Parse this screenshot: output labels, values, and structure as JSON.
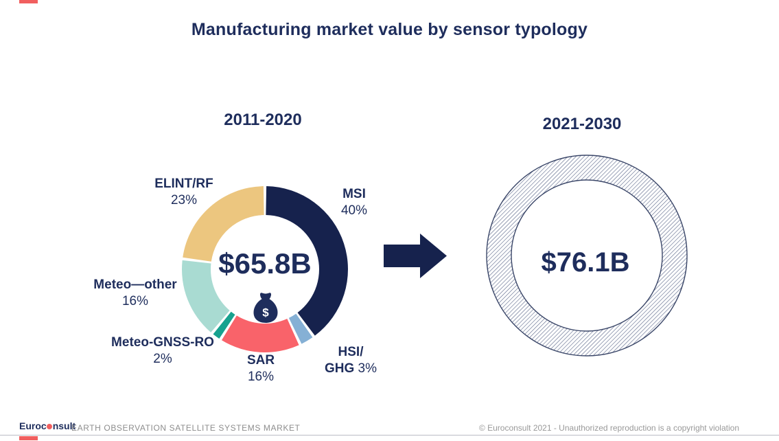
{
  "slide": {
    "title": "Manufacturing market value by sensor typology",
    "accent_color": "#f15f5f",
    "text_navy": "#1e2d5c"
  },
  "chart_data": [
    {
      "type": "pie",
      "variant": "donut",
      "period": "2011-2020",
      "center_value": "$65.8B",
      "legend_position": "around-donut",
      "segments": [
        {
          "label": "MSI",
          "pct_label": "40%",
          "value": 40,
          "color": "#16224d"
        },
        {
          "label": "HSI/GHG",
          "label_line1": "HSI/",
          "label_line2": "GHG",
          "pct_label": "3%",
          "value": 3,
          "color": "#85b0d5"
        },
        {
          "label": "SAR",
          "pct_label": "16%",
          "value": 16,
          "color": "#f9636a"
        },
        {
          "label": "Meteo-GNSS-RO",
          "pct_label": "2%",
          "value": 2,
          "color": "#17a28f"
        },
        {
          "label": "Meteo—other",
          "pct_label": "16%",
          "value": 16,
          "color": "#a9dbd2"
        },
        {
          "label": "ELINT/RF",
          "pct_label": "23%",
          "value": 23,
          "color": "#ecc67f"
        }
      ]
    },
    {
      "type": "pie",
      "variant": "donut-hatched-forecast",
      "period": "2021-2030",
      "center_value": "$76.1B",
      "segments": []
    }
  ],
  "footer": {
    "brand_part1": "Euroc",
    "brand_part2": "nsult",
    "tagline": "EARTH OBSERVATION SATELLITE SYSTEMS MARKET",
    "copyright": "© Euroconsult 2021 - Unauthorized reproduction is a copyright violation"
  }
}
